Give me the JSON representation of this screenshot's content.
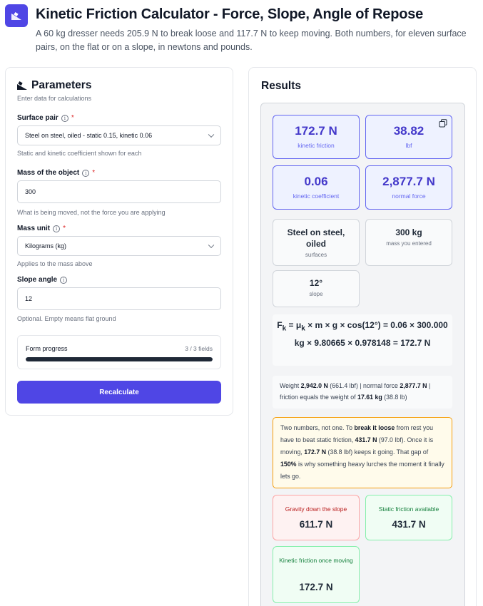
{
  "header": {
    "title": "Kinetic Friction Calculator - Force, Slope, Angle of Repose",
    "subtitle": "A 60 kg dresser needs 205.9 N to break loose and 117.7 N to keep moving. Both numbers, for eleven surface pairs, on the flat or on a slope, in newtons and pounds."
  },
  "params": {
    "title": "Parameters",
    "subtitle": "Enter data for calculations",
    "surface": {
      "label": "Surface pair",
      "value": "Steel on steel, oiled - static 0.15, kinetic 0.06",
      "hint": "Static and kinetic coefficient shown for each"
    },
    "mass": {
      "label": "Mass of the object",
      "value": "300",
      "hint": "What is being moved, not the force you are applying"
    },
    "unit": {
      "label": "Mass unit",
      "value": "Kilograms (kg)",
      "hint": "Applies to the mass above"
    },
    "slope": {
      "label": "Slope angle",
      "value": "12",
      "hint": "Optional. Empty means flat ground"
    },
    "progress": {
      "label": "Form progress",
      "count": "3 / 3 fields",
      "fraction": 1.0
    },
    "button": "Recalculate"
  },
  "results": {
    "title": "Results",
    "kinetic_friction": {
      "value": "172.7 N",
      "label": "kinetic friction"
    },
    "lbf": {
      "value": "38.82",
      "label": "lbf"
    },
    "coefficient": {
      "value": "0.06",
      "label": "kinetic coefficient"
    },
    "normal_force": {
      "value": "2,877.7 N",
      "label": "normal force"
    },
    "surfaces": {
      "value": "Steel on steel, oiled",
      "label": "surfaces"
    },
    "mass_entered": {
      "value": "300 kg",
      "label": "mass you entered"
    },
    "slope": {
      "value": "12°",
      "label": "slope"
    },
    "formula": {
      "lhs_sub": "k",
      "eq1": " = μ",
      "mu_sub": "k",
      "rest": " × m × g × cos(12°) = 0.06 × 300.000 kg × 9.80665 × 0.978148 = 172.7 N"
    },
    "weight": {
      "p1": "Weight ",
      "weight_n": "2,942.0 N",
      "p2": " (661.4 lbf) | normal force ",
      "normal_n": "2,877.7 N",
      "p3": " | friction equals the weight of ",
      "equiv": "17.61 kg",
      "p4": " (38.8 lb)"
    },
    "note": {
      "p1": "Two numbers, not one. To ",
      "b1": "break it loose",
      "p2": " from rest you have to beat static friction, ",
      "b2": "431.7 N",
      "p3": " (97.0 lbf). Once it is moving, ",
      "b3": "172.7 N",
      "p4": " (38.8 lbf) keeps it going. That gap of ",
      "b4": "150%",
      "p5": " is why something heavy lurches the moment it finally lets go."
    },
    "gravity": {
      "label": "Gravity down the slope",
      "value": "611.7 N"
    },
    "static_avail": {
      "label": "Static friction available",
      "value": "431.7 N"
    },
    "kinetic_moving": {
      "label": "Kinetic friction once moving",
      "value": "172.7 N"
    }
  },
  "colors": {
    "accent": "#4f46e5",
    "primary_card_border": "#6366f1",
    "warning_border": "#f59e0b",
    "danger_border": "#fca5a5",
    "success_border": "#86efac"
  }
}
